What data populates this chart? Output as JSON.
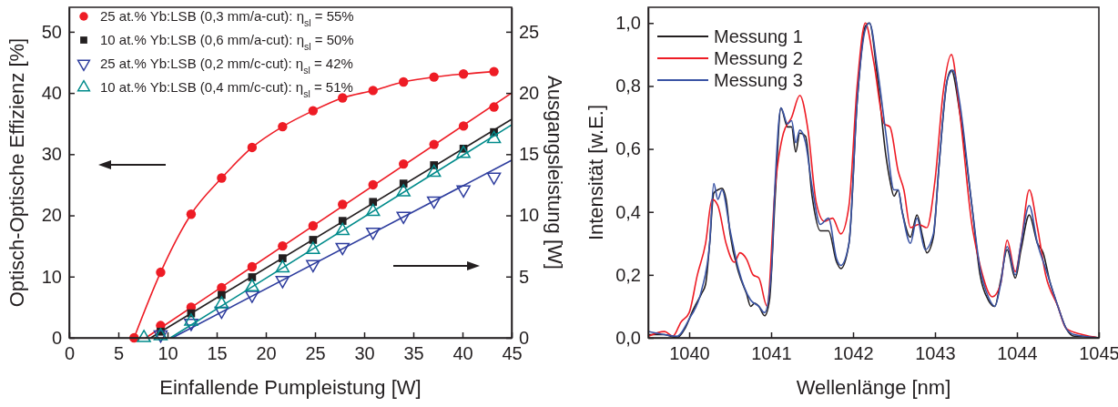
{
  "chart_data": [
    {
      "type": "line",
      "xlabel": "Einfallende Pumpleistung [W]",
      "ylabel": "Optisch-Optische Effizienz [%]",
      "y2label": "Ausgangsleistung [W]",
      "xlim": [
        0,
        45
      ],
      "xticks": [
        0,
        5,
        10,
        15,
        20,
        25,
        30,
        35,
        40,
        45
      ],
      "ylim": [
        0,
        54
      ],
      "yticks": [
        0,
        10,
        20,
        30,
        40,
        50
      ],
      "y2lim": [
        0,
        27
      ],
      "y2ticks": [
        0,
        5,
        10,
        15,
        20,
        25
      ],
      "legend": "top left",
      "marker": "none",
      "series": [
        {
          "marker": "circle",
          "color": "#ee1c25",
          "x": [
            6.6,
            9.3,
            12.4,
            15.5,
            18.6,
            21.7,
            24.8,
            27.8,
            30.9,
            34,
            37.1,
            40.1,
            43.2
          ],
          "values": [
            0,
            10.7,
            20.2,
            26.1,
            31.1,
            34.5,
            37.1,
            39.2,
            40.4,
            41.8,
            42.6,
            43.1,
            43.5
          ]
        },
        {
          "name": "25 at.% Yb:LSB (0,3 mm/a-cut): η$_{sl}$ = 55%",
          "type": "scatter",
          "marker": "circle",
          "axis": "y2",
          "color": "#ee1c25",
          "x": [
            9.3,
            12.4,
            15.5,
            18.6,
            21.7,
            24.8,
            27.8,
            30.9,
            34,
            37.1,
            40.1,
            43.2
          ],
          "values": [
            1,
            2.5,
            4.1,
            5.8,
            7.5,
            9.15,
            10.9,
            12.5,
            14.2,
            15.8,
            17.3,
            18.85
          ]
        },
        {
          "type": "line",
          "axis": "y2",
          "color": "#ee1c25",
          "x": [
            7.8,
            45
          ],
          "values": [
            0,
            20
          ]
        },
        {
          "name": "10 at.% Yb:LSB (0,6 mm/a-cut): η$_{sl}$ = 50%",
          "type": "scatter",
          "marker": "square",
          "axis": "y2",
          "color": "#231f20",
          "x": [
            9.3,
            12.4,
            15.5,
            18.6,
            21.7,
            24.8,
            27.8,
            30.9,
            34,
            37.1,
            40.1,
            43.2
          ],
          "values": [
            0.5,
            2,
            3.5,
            4.95,
            6.5,
            8,
            9.55,
            11.1,
            12.6,
            14.1,
            15.45,
            16.8
          ]
        },
        {
          "type": "line",
          "axis": "y2",
          "color": "#231f20",
          "x": [
            8.3,
            45
          ],
          "values": [
            0,
            17.85
          ]
        },
        {
          "name": "25 at.% Yb:LSB (0,2 mm/c-cut): η$_{sl}$ = 42%",
          "type": "scatter",
          "marker": "triangle-down",
          "axis": "y2",
          "color": "#2e3d9e",
          "x": [
            9.3,
            12.4,
            15.5,
            18.6,
            21.7,
            24.8,
            27.8,
            30.9,
            34,
            37.1,
            40.1,
            43.2
          ],
          "values": [
            0.25,
            1.2,
            2.2,
            3.5,
            4.7,
            6,
            7.4,
            8.65,
            9.95,
            11.2,
            12.1,
            13.15
          ]
        },
        {
          "type": "line",
          "axis": "y2",
          "color": "#2e3d9e",
          "x": [
            10.5,
            45
          ],
          "values": [
            0,
            14.5
          ]
        },
        {
          "name": "10 at.% Yb:LSB (0,4 mm/c-cut): η$_{sl}$ = 51%",
          "type": "scatter",
          "marker": "triangle",
          "axis": "y2",
          "color": "#008b8b",
          "x": [
            7.6,
            9.3,
            12.4,
            15.5,
            18.6,
            21.7,
            24.8,
            27.8,
            30.9,
            34,
            37.1,
            40.1,
            43.2
          ],
          "values": [
            0,
            0.15,
            1.35,
            2.75,
            4.15,
            5.7,
            7.2,
            8.75,
            10.3,
            11.9,
            13.5,
            15.05,
            16.25
          ]
        },
        {
          "type": "line",
          "axis": "y2",
          "color": "#008b8b",
          "x": [
            10.3,
            45
          ],
          "values": [
            0,
            17.4
          ]
        }
      ]
    },
    {
      "type": "line",
      "xlabel": "Wellenlänge [nm]",
      "ylabel": "Intensität [w.E.]",
      "xlim": [
        1039.5,
        1045
      ],
      "xticks": [
        1040,
        1041,
        1042,
        1043,
        1044,
        1045
      ],
      "ylim": [
        0,
        1.05
      ],
      "yticks": [
        {
          "value": 0,
          "label": "0,0"
        },
        {
          "value": 0.2,
          "label": "0,2"
        },
        {
          "value": 0.4,
          "label": "0,4"
        },
        {
          "value": 0.6,
          "label": "0,6"
        },
        {
          "value": 0.8,
          "label": "0,8"
        },
        {
          "value": 1,
          "label": "1,0"
        }
      ],
      "legend": "top left",
      "marker": "none",
      "series": [
        {
          "name": "Messung 1",
          "color": "#231f20",
          "x": [
            1039.5,
            1039.7,
            1039.85,
            1039.95,
            1040.05,
            1040.15,
            1040.2,
            1040.25,
            1040.3,
            1040.35,
            1040.4,
            1040.45,
            1040.5,
            1040.6,
            1040.7,
            1040.75,
            1040.8,
            1040.85,
            1040.92,
            1040.98,
            1041.05,
            1041.12,
            1041.2,
            1041.25,
            1041.3,
            1041.35,
            1041.42,
            1041.5,
            1041.6,
            1041.7,
            1041.8,
            1041.85,
            1041.95,
            1042.05,
            1042.15,
            1042.2,
            1042.3,
            1042.4,
            1042.45,
            1042.5,
            1042.55,
            1042.6,
            1042.7,
            1042.78,
            1042.85,
            1042.9,
            1042.98,
            1043.05,
            1043.15,
            1043.2,
            1043.3,
            1043.45,
            1043.55,
            1043.65,
            1043.73,
            1043.8,
            1043.88,
            1043.98,
            1044.05,
            1044.15,
            1044.25,
            1044.32,
            1044.4,
            1044.5,
            1044.6,
            1044.7,
            1044.8,
            1045
          ],
          "values": [
            0.01,
            0.01,
            0,
            0.03,
            0.09,
            0.14,
            0.17,
            0.3,
            0.46,
            0.47,
            0.475,
            0.44,
            0.33,
            0.21,
            0.14,
            0.1,
            0.11,
            0.1,
            0.07,
            0.12,
            0.45,
            0.73,
            0.67,
            0.67,
            0.59,
            0.65,
            0.64,
            0.45,
            0.34,
            0.34,
            0.24,
            0.22,
            0.3,
            0.75,
            0.99,
            1,
            0.82,
            0.58,
            0.5,
            0.45,
            0.47,
            0.4,
            0.32,
            0.39,
            0.32,
            0.27,
            0.32,
            0.55,
            0.82,
            0.85,
            0.72,
            0.42,
            0.2,
            0.12,
            0.1,
            0.18,
            0.28,
            0.19,
            0.28,
            0.39,
            0.3,
            0.27,
            0.18,
            0.1,
            0.03,
            0.005,
            0.005,
            0
          ]
        },
        {
          "name": "Messung 2",
          "color": "#ee1c25",
          "x": [
            1039.5,
            1039.7,
            1039.8,
            1039.9,
            1040,
            1040.1,
            1040.2,
            1040.28,
            1040.35,
            1040.45,
            1040.55,
            1040.62,
            1040.7,
            1040.78,
            1040.85,
            1040.95,
            1041.05,
            1041.15,
            1041.25,
            1041.35,
            1041.45,
            1041.55,
            1041.65,
            1041.75,
            1041.85,
            1041.95,
            1042.05,
            1042.15,
            1042.25,
            1042.38,
            1042.45,
            1042.55,
            1042.62,
            1042.7,
            1042.8,
            1042.9,
            1043,
            1043.1,
            1043.2,
            1043.3,
            1043.45,
            1043.55,
            1043.7,
            1043.8,
            1043.88,
            1043.98,
            1044.05,
            1044.15,
            1044.25,
            1044.35,
            1044.5,
            1044.6,
            1044.8,
            1045
          ],
          "values": [
            0.005,
            0.02,
            0.005,
            0.05,
            0.08,
            0.2,
            0.3,
            0.44,
            0.42,
            0.3,
            0.24,
            0.27,
            0.25,
            0.2,
            0.19,
            0.1,
            0.48,
            0.65,
            0.7,
            0.77,
            0.66,
            0.43,
            0.37,
            0.38,
            0.33,
            0.42,
            0.8,
            1,
            0.88,
            0.68,
            0.67,
            0.53,
            0.47,
            0.35,
            0.36,
            0.35,
            0.5,
            0.78,
            0.9,
            0.72,
            0.36,
            0.23,
            0.13,
            0.17,
            0.31,
            0.21,
            0.3,
            0.47,
            0.35,
            0.2,
            0.1,
            0.03,
            0.01,
            0
          ]
        },
        {
          "name": "Messung 3",
          "color": "#3953a4",
          "x": [
            1039.5,
            1039.7,
            1039.85,
            1040,
            1040.15,
            1040.25,
            1040.3,
            1040.35,
            1040.4,
            1040.5,
            1040.6,
            1040.75,
            1040.85,
            1040.92,
            1041,
            1041.05,
            1041.12,
            1041.2,
            1041.25,
            1041.3,
            1041.35,
            1041.42,
            1041.5,
            1041.6,
            1041.7,
            1041.8,
            1041.85,
            1041.95,
            1042.05,
            1042.15,
            1042.2,
            1042.3,
            1042.4,
            1042.5,
            1042.55,
            1042.6,
            1042.7,
            1042.78,
            1042.88,
            1042.98,
            1043.05,
            1043.15,
            1043.22,
            1043.3,
            1043.45,
            1043.55,
            1043.65,
            1043.73,
            1043.8,
            1043.88,
            1043.98,
            1044.05,
            1044.15,
            1044.25,
            1044.35,
            1044.5,
            1044.6,
            1044.7,
            1045
          ],
          "values": [
            0.02,
            0.01,
            0.005,
            0.06,
            0.15,
            0.3,
            0.49,
            0.44,
            0.47,
            0.34,
            0.22,
            0.12,
            0.1,
            0.08,
            0.2,
            0.5,
            0.73,
            0.68,
            0.69,
            0.62,
            0.66,
            0.62,
            0.48,
            0.36,
            0.38,
            0.25,
            0.23,
            0.3,
            0.75,
            0.98,
            1,
            0.85,
            0.65,
            0.47,
            0.47,
            0.4,
            0.3,
            0.38,
            0.28,
            0.33,
            0.55,
            0.82,
            0.85,
            0.75,
            0.42,
            0.22,
            0.13,
            0.1,
            0.17,
            0.29,
            0.2,
            0.3,
            0.42,
            0.3,
            0.22,
            0.1,
            0.03,
            0.01,
            0
          ]
        }
      ]
    }
  ]
}
